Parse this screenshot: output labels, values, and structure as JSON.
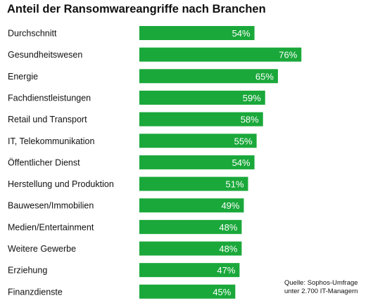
{
  "chart_data": {
    "type": "bar",
    "orientation": "horizontal",
    "title": "Anteil der Ransomwareangriffe nach Branchen",
    "categories": [
      "Durchschnitt",
      "Gesundheitswesen",
      "Energie",
      "Fachdienstleistungen",
      "Retail und Transport",
      "IT, Telekommunikation",
      "Öffentlicher Dienst",
      "Herstellung und Produktion",
      "Bauwesen/Immobilien",
      "Medien/Entertainment",
      "Weitere Gewerbe",
      "Erziehung",
      "Finanzdienste"
    ],
    "values": [
      54,
      76,
      65,
      59,
      58,
      55,
      54,
      51,
      49,
      48,
      48,
      47,
      45
    ],
    "value_labels": [
      "54%",
      "76%",
      "65%",
      "59%",
      "58%",
      "55%",
      "54%",
      "51%",
      "49%",
      "48%",
      "48%",
      "47%",
      "45%"
    ],
    "xlim": [
      0,
      100
    ],
    "grid": false,
    "legend": "none",
    "bar_color": "#1aa83a",
    "label_color": "#ffffff"
  },
  "source": {
    "line1": "Quelle: Sophos-Umfrage",
    "line2": "unter 2.700 IT-Managern"
  }
}
